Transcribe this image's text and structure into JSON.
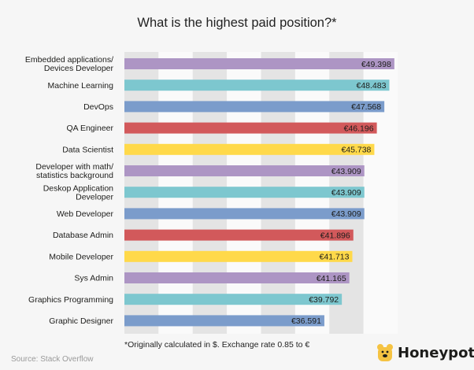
{
  "chart_data": {
    "type": "bar",
    "orientation": "horizontal",
    "title": "What is the highest paid position?*",
    "categories": [
      "Embedded applications/ Devices Developer",
      "Machine Learning",
      "DevOps",
      "QA Engineer",
      "Data Scientist",
      "Developer with math/ statistics background",
      "Deskop Application Developer",
      "Web Developer",
      "Database Admin",
      "Mobile Developer",
      "Sys Admin",
      "Graphics Programming",
      "Graphic Designer"
    ],
    "values": [
      49398,
      48483,
      47568,
      46196,
      45738,
      43909,
      43909,
      43909,
      41896,
      41713,
      41165,
      39792,
      36591
    ],
    "value_labels": [
      "€49.398",
      "€48.483",
      "€47.568",
      "€46.196",
      "€45.738",
      "€43.909",
      "€43.909",
      "€43.909",
      "€41.896",
      "€41.713",
      "€41.165",
      "€39.792",
      "€36.591"
    ],
    "colors": [
      "#ad95c4",
      "#7dc7cf",
      "#7b9ccb",
      "#d2595b",
      "#ffd94a",
      "#ad95c4",
      "#7dc7cf",
      "#7b9ccb",
      "#d2595b",
      "#ffd94a",
      "#ad95c4",
      "#7dc7cf",
      "#7b9ccb"
    ],
    "xlim": [
      0,
      50000
    ],
    "background_bands": true,
    "grid": false,
    "legend": "none"
  },
  "footnote": "*Originally calculated in $. Exchange rate 0.85 to €",
  "source": "Source: Stack Overflow",
  "brand": {
    "name": "Honeypot",
    "logo_icon": "bear-icon",
    "logo_color": "#f5c342"
  }
}
